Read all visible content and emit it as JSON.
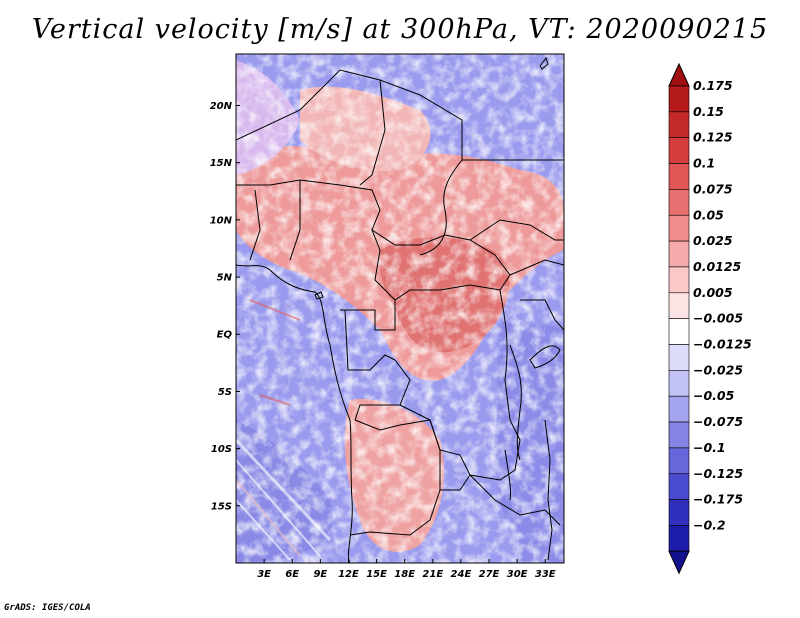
{
  "title": "Vertical velocity [m/s] at 300hPa, VT: 2020090215",
  "credit": "GrADS: IGES/COLA",
  "map": {
    "lon_range": [
      0,
      35
    ],
    "lat_range": [
      -20,
      24.5
    ],
    "lon_ticks": [
      {
        "value": 3,
        "label": "3E"
      },
      {
        "value": 6,
        "label": "6E"
      },
      {
        "value": 9,
        "label": "9E"
      },
      {
        "value": 12,
        "label": "12E"
      },
      {
        "value": 15,
        "label": "15E"
      },
      {
        "value": 18,
        "label": "18E"
      },
      {
        "value": 21,
        "label": "21E"
      },
      {
        "value": 24,
        "label": "24E"
      },
      {
        "value": 27,
        "label": "27E"
      },
      {
        "value": 30,
        "label": "30E"
      },
      {
        "value": 33,
        "label": "33E"
      }
    ],
    "lat_ticks": [
      {
        "value": 20,
        "label": "20N"
      },
      {
        "value": 15,
        "label": "15N"
      },
      {
        "value": 10,
        "label": "10N"
      },
      {
        "value": 5,
        "label": "5N"
      },
      {
        "value": 0,
        "label": "EQ"
      },
      {
        "value": -5,
        "label": "5S"
      },
      {
        "value": -10,
        "label": "10S"
      },
      {
        "value": -15,
        "label": "15S"
      }
    ]
  },
  "colorbar": {
    "levels": [
      {
        "label": "0.175",
        "color": "#b51a1a"
      },
      {
        "label": "0.15",
        "color": "#c52a2a"
      },
      {
        "label": "0.125",
        "color": "#d43d3d"
      },
      {
        "label": "0.1",
        "color": "#e05555"
      },
      {
        "label": "0.075",
        "color": "#e87070"
      },
      {
        "label": "0.05",
        "color": "#f08c8c"
      },
      {
        "label": "0.025",
        "color": "#f7aaaa"
      },
      {
        "label": "0.0125",
        "color": "#fbc8c8"
      },
      {
        "label": "0.005",
        "color": "#fde4e4"
      },
      {
        "label": "−0.005",
        "color": "#ffffff"
      },
      {
        "label": "−0.0125",
        "color": "#dcdcfa"
      },
      {
        "label": "−0.025",
        "color": "#c2c2f5"
      },
      {
        "label": "−0.05",
        "color": "#a4a4ee"
      },
      {
        "label": "−0.075",
        "color": "#8585e6"
      },
      {
        "label": "−0.1",
        "color": "#6767dc"
      },
      {
        "label": "−0.125",
        "color": "#4a4ad0"
      },
      {
        "label": "−0.175",
        "color": "#3030bf"
      },
      {
        "label": "−0.2",
        "color": "#1c1ca8"
      }
    ],
    "top_color": "#a01010",
    "bottom_color": "#12128f"
  }
}
